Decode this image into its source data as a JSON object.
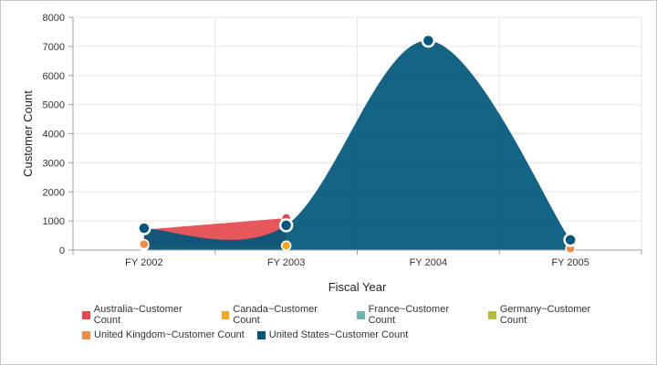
{
  "chart_data": {
    "type": "area",
    "subtype": "spline-area",
    "categories": [
      "FY 2002",
      "FY 2003",
      "FY 2004",
      "FY 2005"
    ],
    "xlabel": "Fiscal Year",
    "ylabel": "Customer Count",
    "ylim": [
      0,
      8000
    ],
    "yticks": [
      0,
      1000,
      2000,
      3000,
      4000,
      5000,
      6000,
      7000,
      8000
    ],
    "grid": true,
    "legend_position": "bottom",
    "series": [
      {
        "name": "Australia~Customer Count",
        "color": "#e5484d",
        "values": [
          700,
          1100,
          null,
          null
        ]
      },
      {
        "name": "Canada~Customer Count",
        "color": "#f5a623",
        "values": [
          150,
          150,
          null,
          null
        ]
      },
      {
        "name": "France~Customer Count",
        "color": "#6fb3b8",
        "values": [
          null,
          null,
          null,
          null
        ]
      },
      {
        "name": "Germany~Customer Count",
        "color": "#b5bd3d",
        "values": [
          null,
          null,
          null,
          null
        ]
      },
      {
        "name": "United Kingdom~Customer Count",
        "color": "#f28c44",
        "values": [
          200,
          null,
          null,
          50
        ]
      },
      {
        "name": "United States~Customer Count",
        "color": "#00577c",
        "values": [
          750,
          850,
          7200,
          350
        ]
      }
    ],
    "legend_rows": [
      [
        0,
        1,
        2,
        3
      ],
      [
        4,
        5
      ]
    ]
  }
}
